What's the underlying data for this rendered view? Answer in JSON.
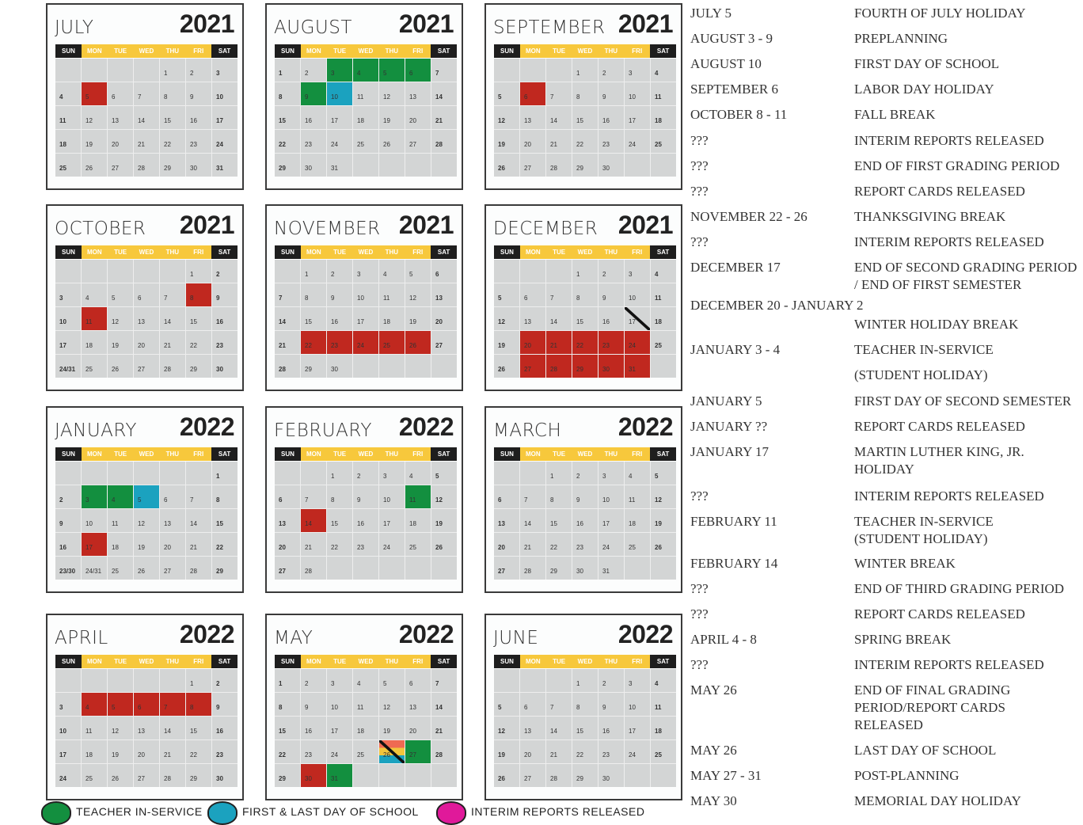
{
  "weekdays": [
    "SUN",
    "MON",
    "TUE",
    "WED",
    "THU",
    "FRI",
    "SAT"
  ],
  "colors": {
    "red": "#c0281f",
    "green": "#138f3f",
    "blue": "#1ba2bf",
    "yellow": "#f7c83c",
    "magenta": "#e0199a"
  },
  "calendars": [
    {
      "month": "JULY",
      "year": "2021",
      "start": 4,
      "days": 31,
      "marks": {
        "5": "red"
      }
    },
    {
      "month": "AUGUST",
      "year": "2021",
      "start": 0,
      "days": 31,
      "marks": {
        "3": "green",
        "4": "green",
        "5": "green",
        "6": "green",
        "9": "green",
        "10": "blue"
      }
    },
    {
      "month": "SEPTEMBER",
      "year": "2021",
      "start": 3,
      "days": 30,
      "marks": {
        "6": "red"
      }
    },
    {
      "month": "OCTOBER",
      "year": "2021",
      "start": 5,
      "days": 31,
      "marks": {
        "8": "red",
        "11": "red"
      },
      "merged": [
        "24/31"
      ]
    },
    {
      "month": "NOVEMBER",
      "year": "2021",
      "start": 1,
      "days": 30,
      "marks": {
        "22": "red",
        "23": "red",
        "24": "red",
        "25": "red",
        "26": "red"
      }
    },
    {
      "month": "DECEMBER",
      "year": "2021",
      "start": 3,
      "days": 31,
      "marks": {
        "20": "red",
        "21": "red",
        "22": "red",
        "23": "red",
        "24": "red",
        "27": "red",
        "28": "red",
        "29": "red",
        "30": "red",
        "31": "red"
      },
      "slashed": [
        17
      ]
    },
    {
      "month": "JANUARY",
      "year": "2022",
      "start": 6,
      "days": 31,
      "marks": {
        "3": "green",
        "4": "green",
        "5": "blue",
        "17": "red"
      },
      "merged": [
        "23/30",
        "24/31"
      ]
    },
    {
      "month": "FEBRUARY",
      "year": "2022",
      "start": 2,
      "days": 28,
      "marks": {
        "11": "green",
        "14": "red"
      }
    },
    {
      "month": "MARCH",
      "year": "2022",
      "start": 2,
      "days": 31,
      "marks": {}
    },
    {
      "month": "APRIL",
      "year": "2022",
      "start": 5,
      "days": 30,
      "marks": {
        "4": "red",
        "5": "red",
        "6": "red",
        "7": "red",
        "8": "red"
      }
    },
    {
      "month": "MAY",
      "year": "2022",
      "start": 0,
      "days": 31,
      "marks": {
        "26": "multi",
        "27": "green",
        "30": "red",
        "31": "green"
      },
      "slashed": [
        26
      ]
    },
    {
      "month": "JUNE",
      "year": "2022",
      "start": 3,
      "days": 30,
      "marks": {}
    }
  ],
  "events": [
    {
      "date": "JULY 5",
      "event": "FOURTH OF JULY HOLIDAY"
    },
    {
      "date": "AUGUST 3 - 9",
      "event": "PREPLANNING"
    },
    {
      "date": "AUGUST 10",
      "event": "FIRST DAY OF SCHOOL"
    },
    {
      "date": "SEPTEMBER 6",
      "event": "LABOR DAY HOLIDAY"
    },
    {
      "date": "OCTOBER 8 - 11",
      "event": "FALL BREAK"
    },
    {
      "date": "???",
      "event": "INTERIM REPORTS RELEASED"
    },
    {
      "date": "???",
      "event": "END OF FIRST GRADING PERIOD"
    },
    {
      "date": "???",
      "event": "REPORT CARDS RELEASED"
    },
    {
      "date": "NOVEMBER 22 - 26",
      "event": "THANKSGIVING BREAK"
    },
    {
      "date": "???",
      "event": "INTERIM REPORTS RELEASED"
    },
    {
      "date": "DECEMBER 17",
      "event": "END OF SECOND GRADING PERIOD\n/ END OF FIRST SEMESTER"
    },
    {
      "date": "DECEMBER 20 - JANUARY 2",
      "event": ""
    },
    {
      "date": "",
      "event": "WINTER HOLIDAY BREAK"
    },
    {
      "date": "JANUARY 3 - 4",
      "event": "TEACHER IN-SERVICE"
    },
    {
      "date": "",
      "event": "(STUDENT HOLIDAY)"
    },
    {
      "date": "JANUARY  5",
      "event": "FIRST DAY OF SECOND SEMESTER"
    },
    {
      "date": "JANUARY ??",
      "event": "REPORT CARDS RELEASED"
    },
    {
      "date": "JANUARY 17",
      "event": "MARTIN LUTHER KING, JR.\nHOLIDAY"
    },
    {
      "date": "???",
      "event": "INTERIM REPORTS RELEASED"
    },
    {
      "date": "FEBRUARY 11",
      "event": "TEACHER IN-SERVICE\n(STUDENT HOLIDAY)"
    },
    {
      "date": "FEBRUARY 14",
      "event": "WINTER BREAK"
    },
    {
      "date": "???",
      "event": "END OF THIRD GRADING PERIOD"
    },
    {
      "date": "???",
      "event": "REPORT CARDS RELEASED"
    },
    {
      "date": "APRIL 4 - 8",
      "event": "SPRING BREAK"
    },
    {
      "date": "???",
      "event": "INTERIM REPORTS RELEASED"
    },
    {
      "date": "MAY 26",
      "event": "END OF FINAL GRADING\nPERIOD/REPORT CARDS\nRELEASED"
    },
    {
      "date": "MAY 26",
      "event": "LAST DAY OF SCHOOL"
    },
    {
      "date": "MAY 27 - 31",
      "event": "POST-PLANNING"
    },
    {
      "date": "MAY 30",
      "event": "MEMORIAL DAY HOLIDAY"
    }
  ],
  "legend": [
    {
      "label": "TEACHER IN-SERVICE",
      "color": "#138f3f"
    },
    {
      "label": "FIRST & LAST DAY OF SCHOOL",
      "color": "#1ba2bf"
    },
    {
      "label": "INTERIM REPORTS RELEASED",
      "color": "#e0199a"
    }
  ]
}
